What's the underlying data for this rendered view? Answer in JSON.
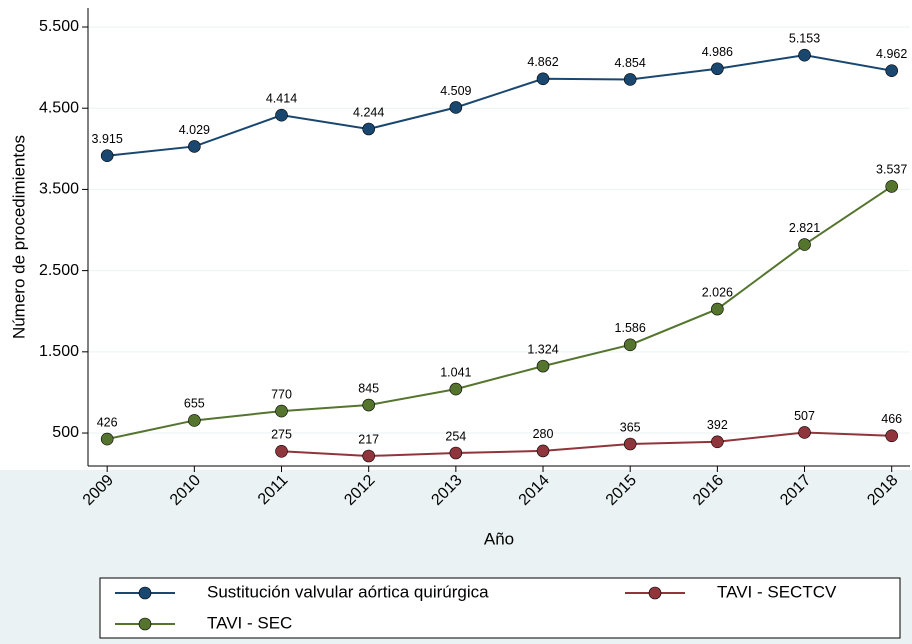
{
  "chart_data": {
    "type": "line",
    "x_label": "Año",
    "y_label": "Número de procedimientos",
    "x": [
      2009,
      2010,
      2011,
      2012,
      2013,
      2014,
      2015,
      2016,
      2017,
      2018
    ],
    "xlim": [
      2008.78,
      2018.21
    ],
    "xticks": [
      2009,
      2010,
      2011,
      2012,
      2013,
      2014,
      2015,
      2016,
      2017,
      2018
    ],
    "ylim": [
      94,
      5734
    ],
    "yticks": [
      {
        "value": 500,
        "label": "500"
      },
      {
        "value": 1500,
        "label": "1.500"
      },
      {
        "value": 2500,
        "label": "2.500"
      },
      {
        "value": 3500,
        "label": "3.500"
      },
      {
        "value": 4500,
        "label": "4.500"
      },
      {
        "value": 5500,
        "label": "5.500"
      }
    ],
    "grid": true,
    "legend_position": "bottom",
    "series": [
      {
        "name": "Sustitución valvular aórtica quirúrgica",
        "color": "#1a476f",
        "values": [
          3915,
          4029,
          4414,
          4244,
          4509,
          4862,
          4854,
          4986,
          5153,
          4962
        ],
        "value_labels": [
          "3.915",
          "4.029",
          "4.414",
          "4.244",
          "4.509",
          "4.862",
          "4.854",
          "4.986",
          "5.153",
          "4.962"
        ]
      },
      {
        "name": "TAVI - SECTCV",
        "color": "#90353b",
        "values": [
          null,
          null,
          275,
          217,
          254,
          280,
          365,
          392,
          507,
          466
        ],
        "value_labels": [
          null,
          null,
          "275",
          "217",
          "254",
          "280",
          "365",
          "392",
          "507",
          "466"
        ]
      },
      {
        "name": "TAVI - SEC",
        "color": "#55752f",
        "values": [
          426,
          655,
          770,
          845,
          1041,
          1324,
          1586,
          2026,
          2821,
          3537
        ],
        "value_labels": [
          "426",
          "655",
          "770",
          "845",
          "1.041",
          "1.324",
          "1.586",
          "2.026",
          "2.821",
          "3.537"
        ]
      }
    ]
  }
}
